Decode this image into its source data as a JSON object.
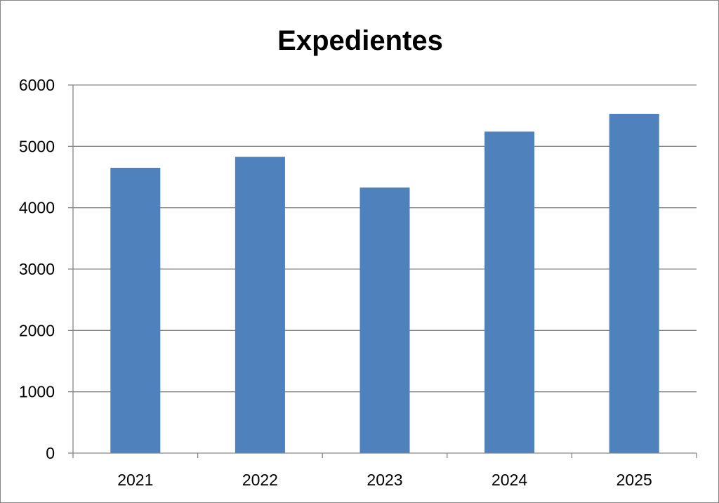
{
  "chart_data": {
    "type": "bar",
    "title": "Expedientes",
    "categories": [
      "2021",
      "2022",
      "2023",
      "2024",
      "2025"
    ],
    "series": [
      {
        "values": [
          4650,
          4830,
          4330,
          5240,
          5530
        ]
      }
    ],
    "ylim": [
      0,
      6000
    ],
    "yticks": [
      "0",
      "1000",
      "2000",
      "3000",
      "4000",
      "5000",
      "6000"
    ],
    "grid": true,
    "legend": "none",
    "bar_color": "#4F81BD",
    "grid_color": "#868686"
  }
}
